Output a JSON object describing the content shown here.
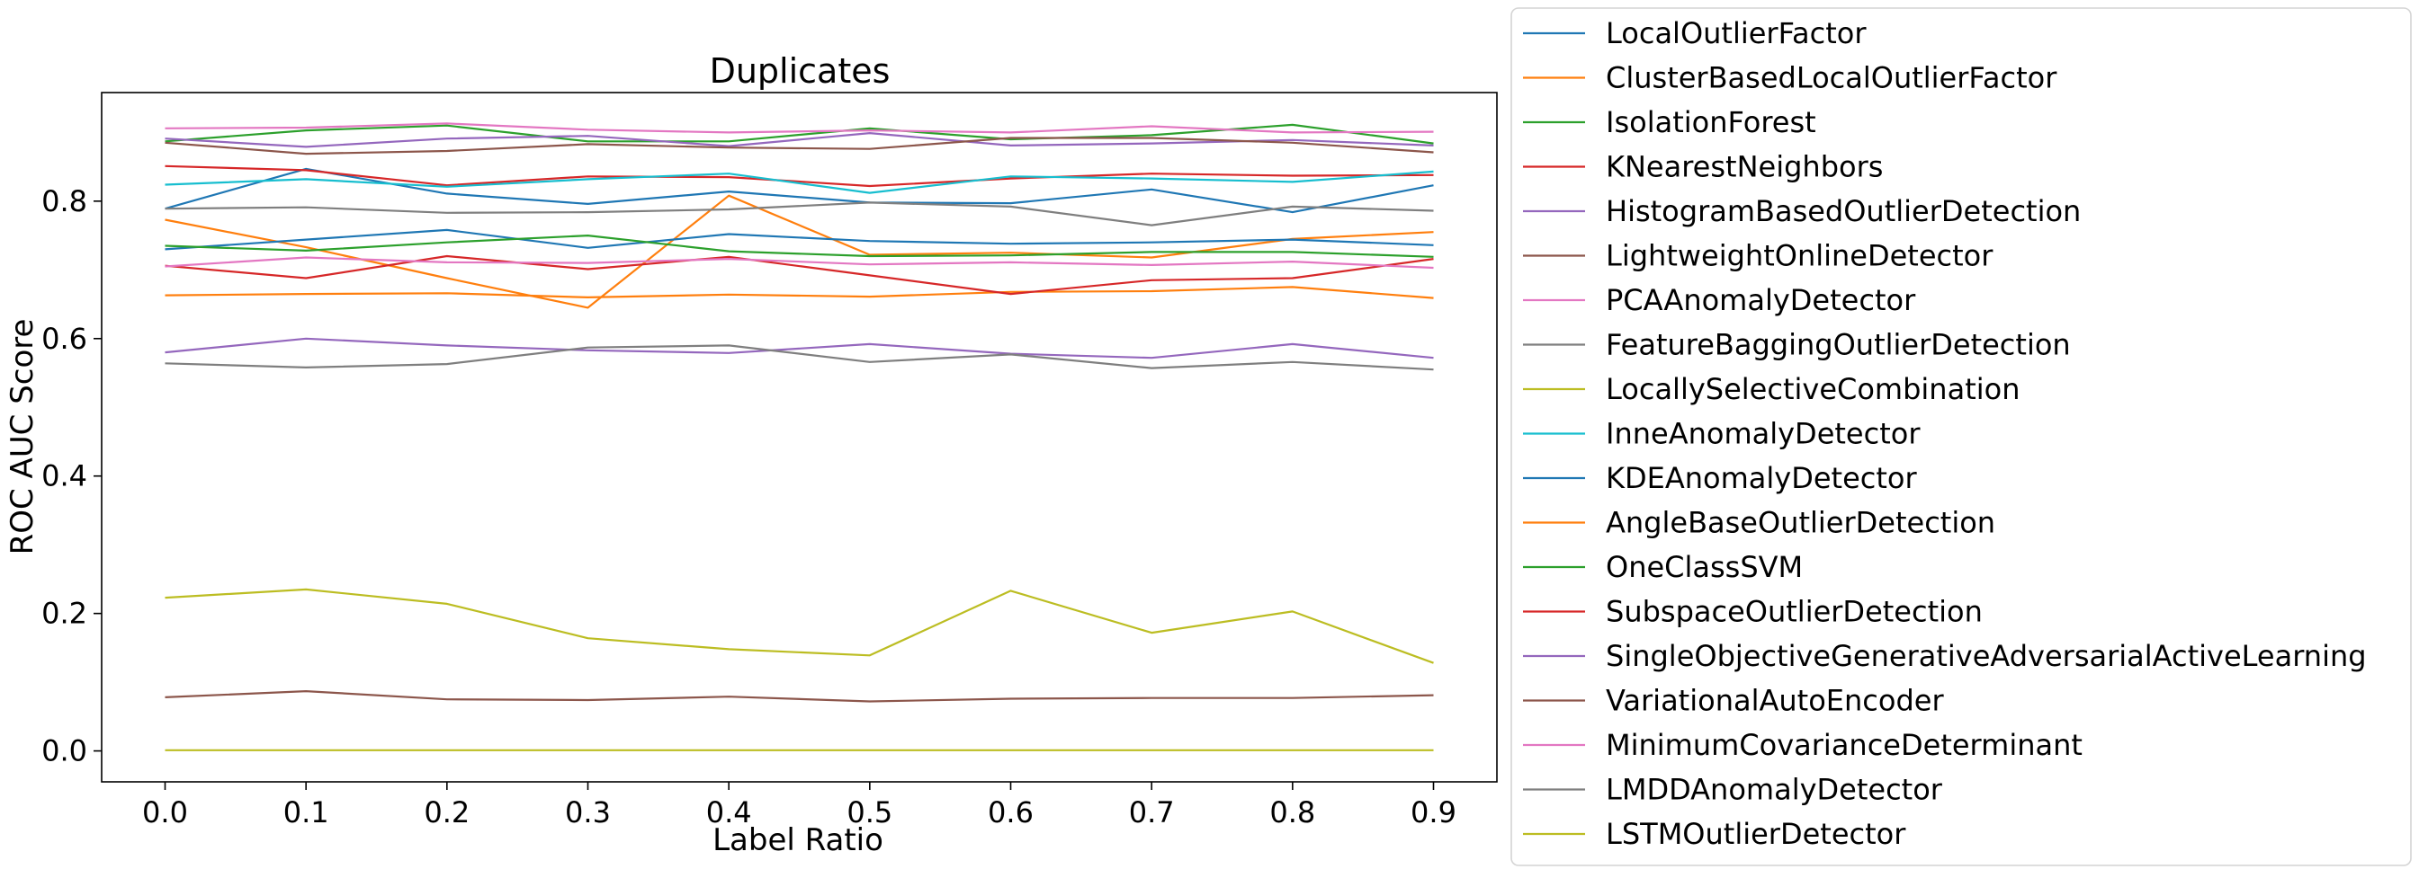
{
  "chart_data": {
    "type": "line",
    "title": "Duplicates",
    "xlabel": "Label Ratio",
    "ylabel": "ROC AUC Score",
    "xlim": [
      -0.045,
      0.945
    ],
    "ylim": [
      -0.045,
      0.958
    ],
    "x": [
      0.0,
      0.1,
      0.2,
      0.3,
      0.4,
      0.5,
      0.6,
      0.7,
      0.8,
      0.9
    ],
    "xticks": [
      "0.0",
      "0.1",
      "0.2",
      "0.3",
      "0.4",
      "0.5",
      "0.6",
      "0.7",
      "0.8",
      "0.9"
    ],
    "yticks": [
      "0.0",
      "0.2",
      "0.4",
      "0.6",
      "0.8"
    ],
    "ytick_values": [
      0.0,
      0.2,
      0.4,
      0.6,
      0.8
    ],
    "grid": false,
    "legend_position": "outside-right",
    "series": [
      {
        "name": "LocalOutlierFactor",
        "color": "#1f77b4",
        "values": [
          0.789,
          0.847,
          0.811,
          0.796,
          0.814,
          0.798,
          0.797,
          0.817,
          0.784,
          0.823
        ]
      },
      {
        "name": "ClusterBasedLocalOutlierFactor",
        "color": "#ff7f0e",
        "values": [
          0.773,
          0.733,
          0.688,
          0.645,
          0.808,
          0.722,
          0.725,
          0.718,
          0.745,
          0.755
        ]
      },
      {
        "name": "IsolationForest",
        "color": "#2ca02c",
        "values": [
          0.887,
          0.903,
          0.91,
          0.887,
          0.887,
          0.906,
          0.89,
          0.896,
          0.911,
          0.884
        ]
      },
      {
        "name": "KNearestNeighbors",
        "color": "#d62728",
        "values": [
          0.851,
          0.845,
          0.823,
          0.836,
          0.835,
          0.822,
          0.833,
          0.84,
          0.837,
          0.838
        ]
      },
      {
        "name": "HistogramBasedOutlierDetection",
        "color": "#9467bd",
        "values": [
          0.58,
          0.6,
          0.59,
          0.583,
          0.579,
          0.592,
          0.578,
          0.572,
          0.592,
          0.572
        ]
      },
      {
        "name": "LightweightOnlineDetector",
        "color": "#8c564b",
        "values": [
          0.078,
          0.087,
          0.075,
          0.074,
          0.079,
          0.072,
          0.076,
          0.077,
          0.077,
          0.081
        ]
      },
      {
        "name": "PCAAnomalyDetector",
        "color": "#e377c2",
        "values": [
          0.906,
          0.907,
          0.913,
          0.904,
          0.9,
          0.903,
          0.9,
          0.909,
          0.9,
          0.901
        ]
      },
      {
        "name": "FeatureBaggingOutlierDetection",
        "color": "#7f7f7f",
        "values": [
          0.789,
          0.791,
          0.783,
          0.784,
          0.788,
          0.798,
          0.792,
          0.765,
          0.792,
          0.786
        ]
      },
      {
        "name": "LocallySelectiveCombination",
        "color": "#bcbd22",
        "values": [
          0.001,
          0.001,
          0.001,
          0.001,
          0.001,
          0.001,
          0.001,
          0.001,
          0.001,
          0.001
        ]
      },
      {
        "name": "InneAnomalyDetector",
        "color": "#17becf",
        "values": [
          0.824,
          0.832,
          0.821,
          0.832,
          0.84,
          0.812,
          0.836,
          0.833,
          0.828,
          0.843
        ]
      },
      {
        "name": "KDEAnomalyDetector",
        "color": "#1f77b4",
        "values": [
          0.73,
          0.744,
          0.758,
          0.732,
          0.752,
          0.742,
          0.738,
          0.74,
          0.744,
          0.736
        ]
      },
      {
        "name": "AngleBaseOutlierDetection",
        "color": "#ff7f0e",
        "values": [
          0.663,
          0.665,
          0.666,
          0.66,
          0.664,
          0.661,
          0.668,
          0.669,
          0.675,
          0.659
        ]
      },
      {
        "name": "OneClassSVM",
        "color": "#2ca02c",
        "values": [
          0.735,
          0.728,
          0.74,
          0.75,
          0.727,
          0.72,
          0.721,
          0.726,
          0.726,
          0.719
        ]
      },
      {
        "name": "SubspaceOutlierDetection",
        "color": "#d62728",
        "values": [
          0.706,
          0.688,
          0.72,
          0.701,
          0.719,
          0.692,
          0.665,
          0.685,
          0.688,
          0.716
        ]
      },
      {
        "name": "SingleObjectiveGenerativeAdversarialActiveLearning",
        "color": "#9467bd",
        "values": [
          0.891,
          0.879,
          0.891,
          0.895,
          0.88,
          0.899,
          0.881,
          0.884,
          0.889,
          0.881
        ]
      },
      {
        "name": "VariationalAutoEncoder",
        "color": "#8c564b",
        "values": [
          0.885,
          0.869,
          0.873,
          0.883,
          0.878,
          0.876,
          0.892,
          0.892,
          0.885,
          0.871
        ]
      },
      {
        "name": "MinimumCovarianceDeterminant",
        "color": "#e377c2",
        "values": [
          0.705,
          0.718,
          0.711,
          0.71,
          0.716,
          0.708,
          0.711,
          0.707,
          0.712,
          0.703
        ]
      },
      {
        "name": "LMDDAnomalyDetector",
        "color": "#7f7f7f",
        "values": [
          0.564,
          0.558,
          0.563,
          0.587,
          0.59,
          0.566,
          0.577,
          0.557,
          0.566,
          0.555
        ]
      },
      {
        "name": "LSTMOutlierDetector",
        "color": "#bcbd22",
        "values": [
          0.223,
          0.235,
          0.214,
          0.164,
          0.148,
          0.139,
          0.233,
          0.172,
          0.203,
          0.128
        ]
      }
    ]
  }
}
